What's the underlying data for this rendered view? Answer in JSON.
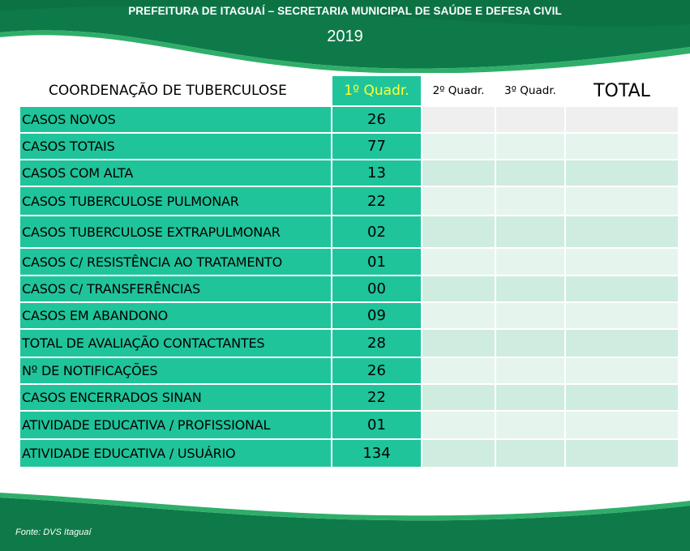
{
  "header": {
    "title": "PREFEITURA DE ITAGUAÍ – SECRETARIA MUNICIPAL DE SAÚDE E DEFESA  CIVIL",
    "year": "2019"
  },
  "table": {
    "columns": {
      "label": "COORDENAÇÃO DE TUBERCULOSE",
      "q1": "1º Quadr.",
      "q2": "2º Quadr.",
      "q3": "3º Quadr.",
      "total": "TOTAL"
    },
    "rows": [
      {
        "label": "CASOS NOVOS",
        "q1": "26"
      },
      {
        "label": "CASOS TOTAIS",
        "q1": "77"
      },
      {
        "label": "CASOS COM ALTA",
        "q1": "13"
      },
      {
        "label": "CASOS TUBERCULOSE PULMONAR",
        "q1": "22"
      },
      {
        "label": "CASOS TUBERCULOSE EXTRAPULMONAR",
        "q1": "02"
      },
      {
        "label": "CASOS C/ RESISTÊNCIA AO TRATAMENTO",
        "q1": "01"
      },
      {
        "label": "CASOS C/ TRANSFERÊNCIAS",
        "q1": "00"
      },
      {
        "label": "CASOS EM ABANDONO",
        "q1": "09"
      },
      {
        "label": "TOTAL DE AVALIAÇÃO CONTACTANTES",
        "q1": "28"
      },
      {
        "label": "Nº DE NOTIFICAÇÕES",
        "q1": "26"
      },
      {
        "label": "CASOS ENCERRADOS SINAN",
        "q1": "22"
      },
      {
        "label": "ATIVIDADE EDUCATIVA / PROFISSIONAL",
        "q1": "01"
      },
      {
        "label": "ATIVIDADE EDUCATIVA / USUÁRIO",
        "q1": "134"
      }
    ]
  },
  "footer": {
    "source": "Fonte: DVS Itaguaí"
  },
  "colors": {
    "band_dark": "#0e7a49",
    "band_light": "#2fae6a",
    "cell_green": "#1fc49a",
    "header_highlight": "#ffff33",
    "empty_cell": "#cfece0"
  }
}
